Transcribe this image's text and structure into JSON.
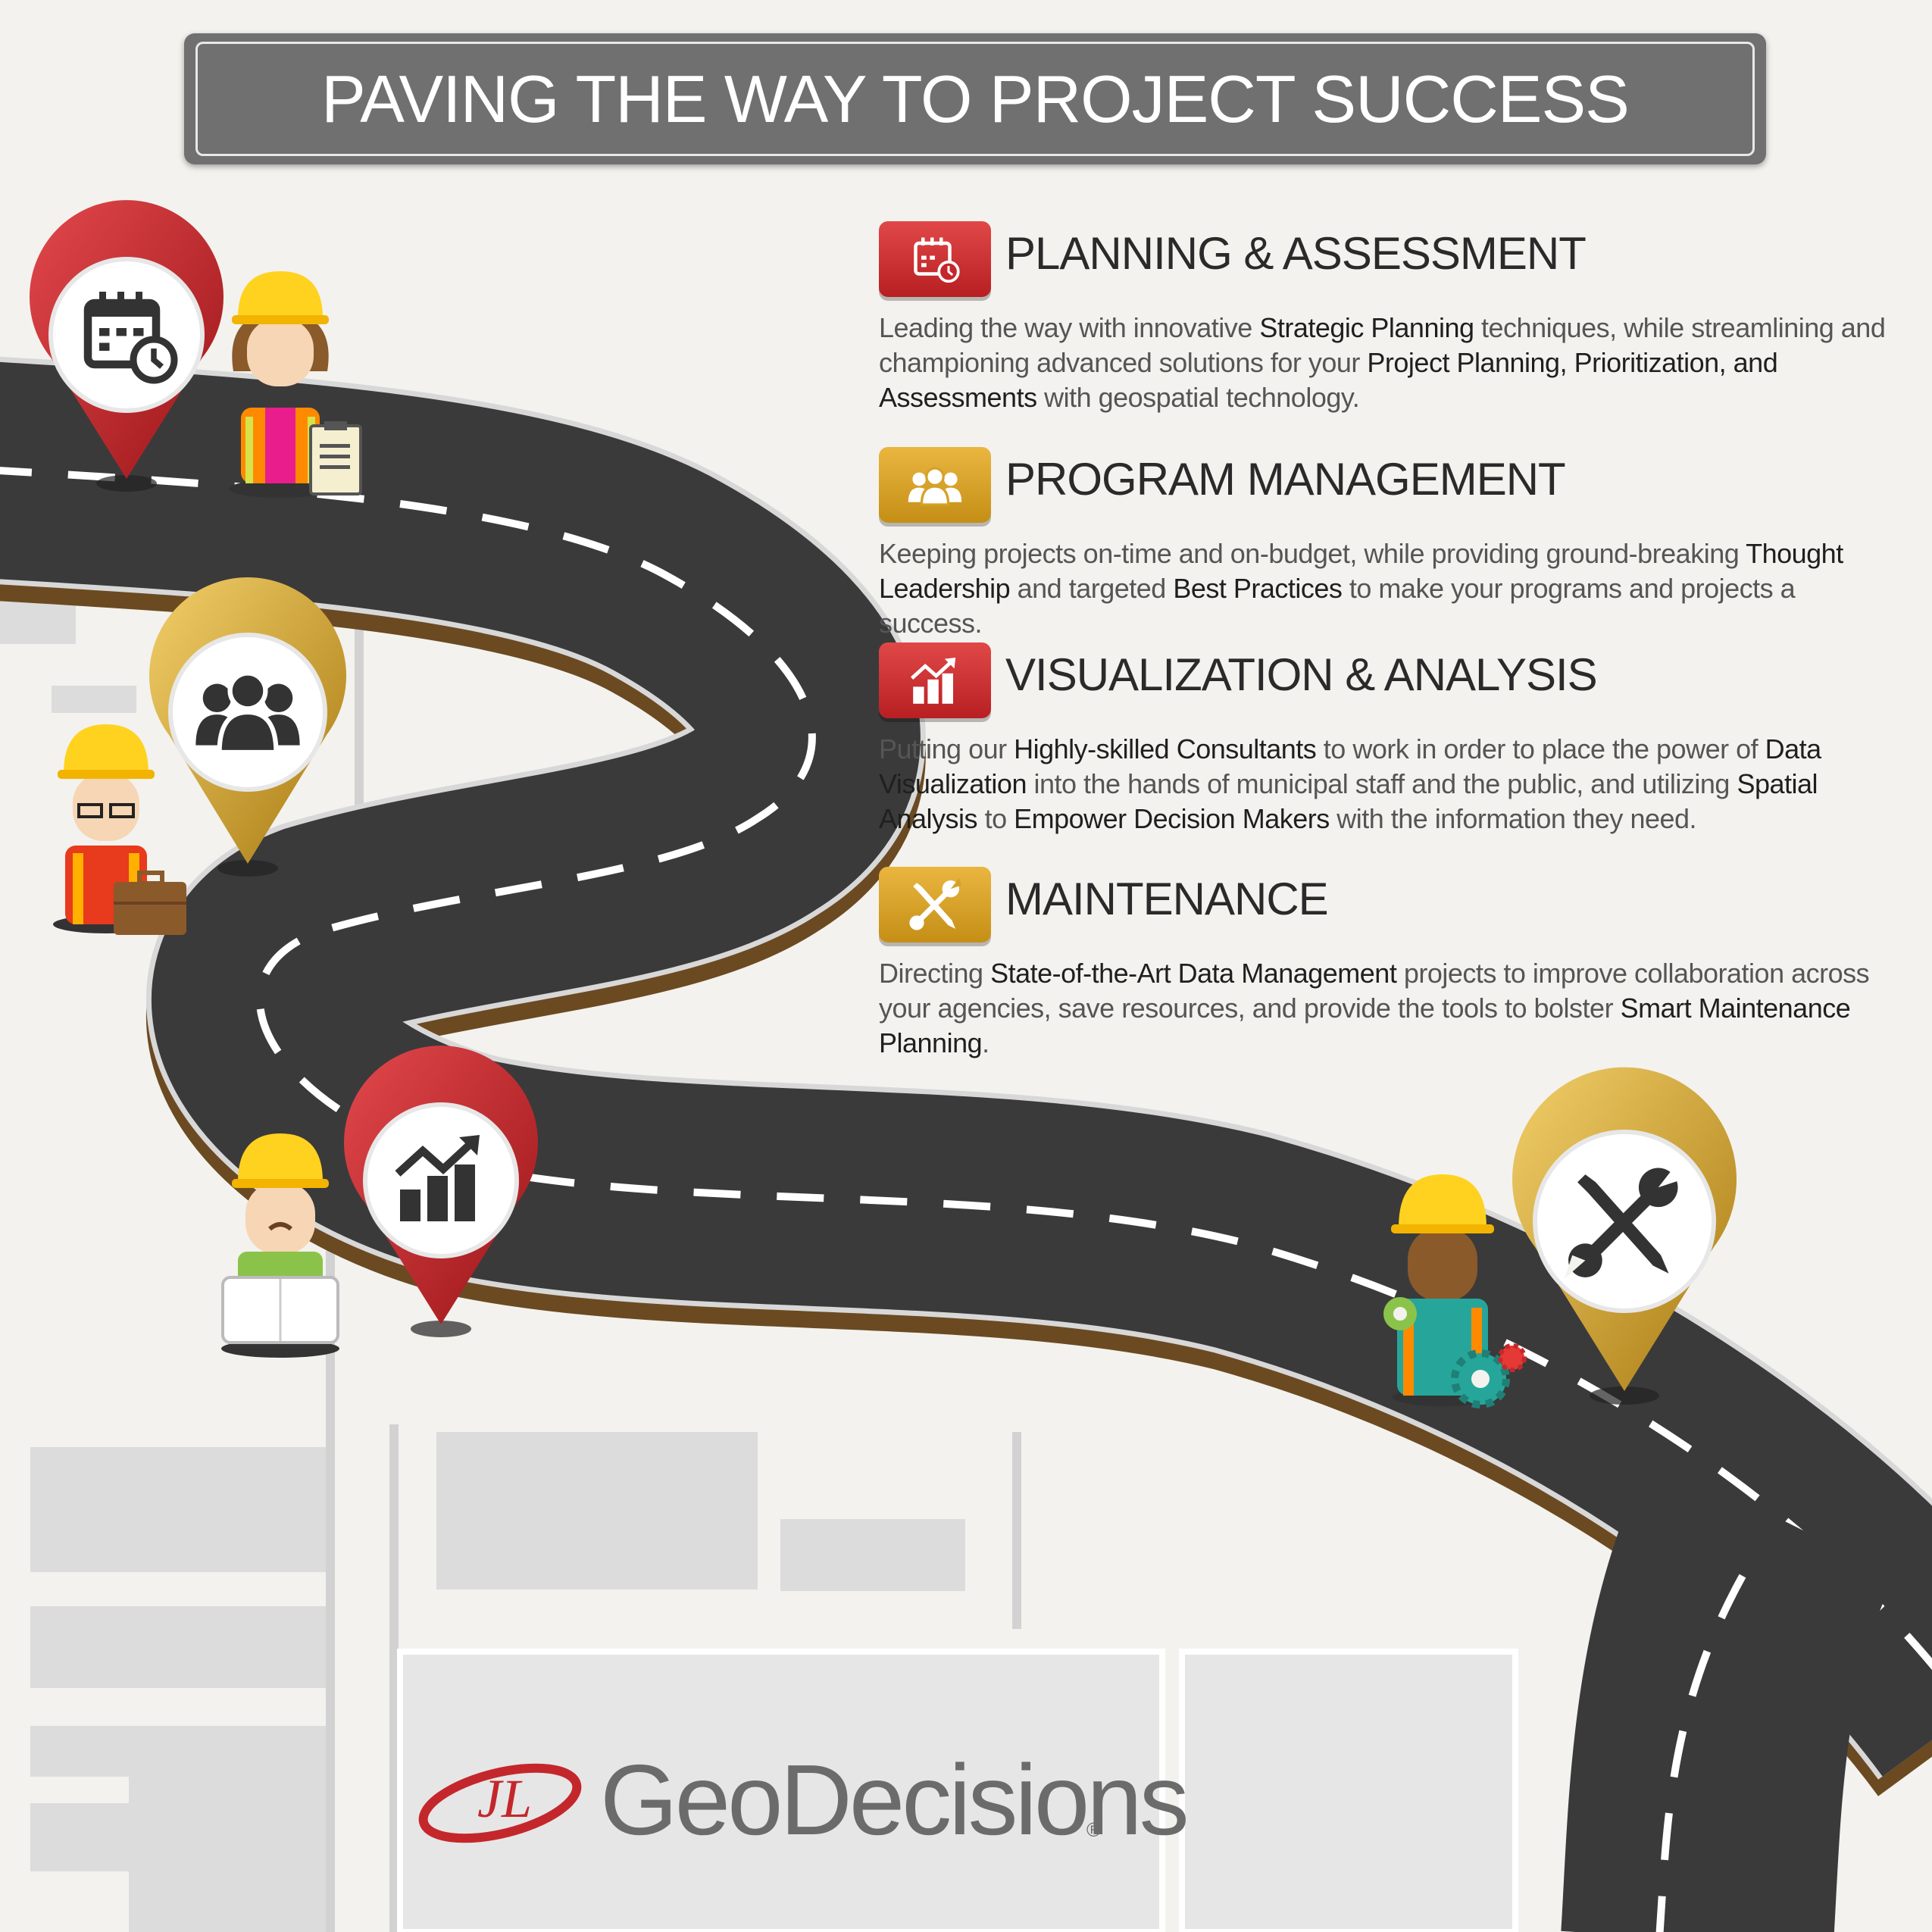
{
  "title": "PAVING THE WAY TO PROJECT SUCCESS",
  "colors": {
    "background": "#f3f2ee",
    "road": "#3a3a3b",
    "road_edge": "#6b4a22",
    "red_accent": "#c4272b",
    "gold_accent": "#d6a126",
    "title_bar": "#707070"
  },
  "sections": [
    {
      "title": "PLANNING & ASSESSMENT",
      "icon": "calendar-clock-icon",
      "badge": "red",
      "body": [
        {
          "t": "Leading the way with innovative ",
          "b": false
        },
        {
          "t": "Strategic Planning",
          "b": true
        },
        {
          "t": " techniques, while streamlining and championing advanced solutions for your ",
          "b": false
        },
        {
          "t": "Project Planning, Prioritization, and Assessments",
          "b": true
        },
        {
          "t": " with geospatial technology.",
          "b": false
        }
      ]
    },
    {
      "title": "PROGRAM MANAGEMENT",
      "icon": "people-group-icon",
      "badge": "gold",
      "body": [
        {
          "t": "Keeping projects on-time and on-budget, while providing ground-breaking ",
          "b": false
        },
        {
          "t": "Thought Leadership",
          "b": true
        },
        {
          "t": " and targeted ",
          "b": false
        },
        {
          "t": "Best Practices",
          "b": true
        },
        {
          "t": " to make your programs and projects a success.",
          "b": false
        }
      ]
    },
    {
      "title": "VISUALIZATION & ANALYSIS",
      "icon": "growth-chart-icon",
      "badge": "red",
      "body": [
        {
          "t": "Putting our ",
          "b": false
        },
        {
          "t": "Highly-skilled Consultants",
          "b": true
        },
        {
          "t": " to work in order to place the power of ",
          "b": false
        },
        {
          "t": "Data Visualization",
          "b": true
        },
        {
          "t": " into the hands of municipal staff and the public, and utilizing ",
          "b": false
        },
        {
          "t": "Spatial Analysis",
          "b": true
        },
        {
          "t": " to ",
          "b": false
        },
        {
          "t": "Empower Decision Makers",
          "b": true
        },
        {
          "t": " with the information they need.",
          "b": false
        }
      ]
    },
    {
      "title": "MAINTENANCE",
      "icon": "tools-icon",
      "badge": "gold",
      "body": [
        {
          "t": "Directing ",
          "b": false
        },
        {
          "t": "State-of-the-Art Data Management",
          "b": true
        },
        {
          "t": " projects to improve collaboration across your agencies, save resources, and provide the tools to bolster ",
          "b": false
        },
        {
          "t": "Smart Maintenance Planning",
          "b": true
        },
        {
          "t": ".",
          "b": false
        }
      ]
    }
  ],
  "pins": [
    {
      "icon": "calendar-clock-icon",
      "color": "red"
    },
    {
      "icon": "people-group-icon",
      "color": "gold"
    },
    {
      "icon": "growth-chart-icon",
      "color": "red"
    },
    {
      "icon": "tools-icon",
      "color": "gold"
    }
  ],
  "workers": [
    {
      "prop": "clipboard-icon"
    },
    {
      "prop": "briefcase-icon"
    },
    {
      "prop": "blueprint-icon"
    },
    {
      "prop": "gears-icon"
    }
  ],
  "logo": {
    "name": "GeoDecisions",
    "mark": "®"
  }
}
